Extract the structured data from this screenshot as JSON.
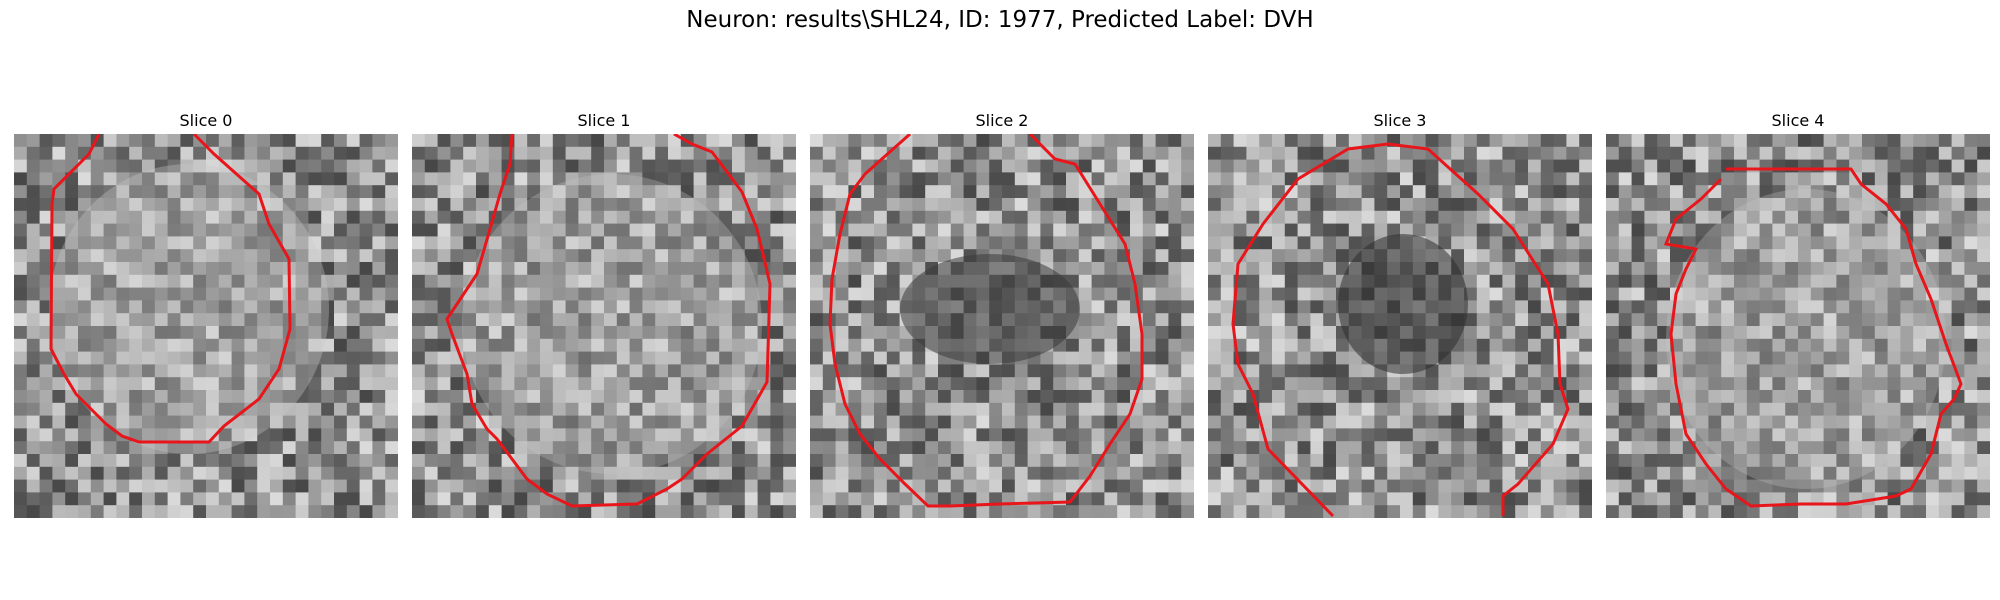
{
  "figure": {
    "title": "Neuron: results\\SHL24, ID: 1977, Predicted Label: DVH"
  },
  "colors": {
    "contour": "#e8151b",
    "background": "#ffffff"
  },
  "panels": [
    {
      "title": "Slice 0"
    },
    {
      "title": "Slice 1"
    },
    {
      "title": "Slice 2"
    },
    {
      "title": "Slice 3"
    },
    {
      "title": "Slice 4"
    }
  ]
}
